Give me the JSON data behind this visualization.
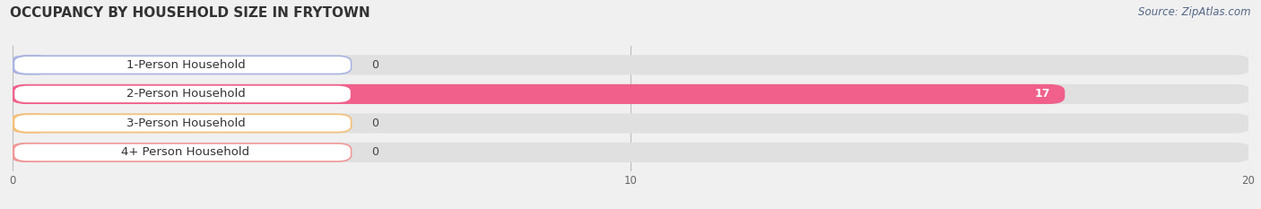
{
  "title": "OCCUPANCY BY HOUSEHOLD SIZE IN FRYTOWN",
  "source": "Source: ZipAtlas.com",
  "categories": [
    "1-Person Household",
    "2-Person Household",
    "3-Person Household",
    "4+ Person Household"
  ],
  "values": [
    0,
    17,
    0,
    0
  ],
  "bar_colors": [
    "#aab4e0",
    "#f0608a",
    "#f5c078",
    "#f09898"
  ],
  "label_bg_color": "#ffffff",
  "xlim": [
    0,
    20
  ],
  "xticks": [
    0,
    10,
    20
  ],
  "background_color": "#f0f0f0",
  "bar_bg_color": "#e0e0e0",
  "title_fontsize": 11,
  "label_fontsize": 9.5,
  "value_fontsize": 9,
  "source_fontsize": 8.5
}
